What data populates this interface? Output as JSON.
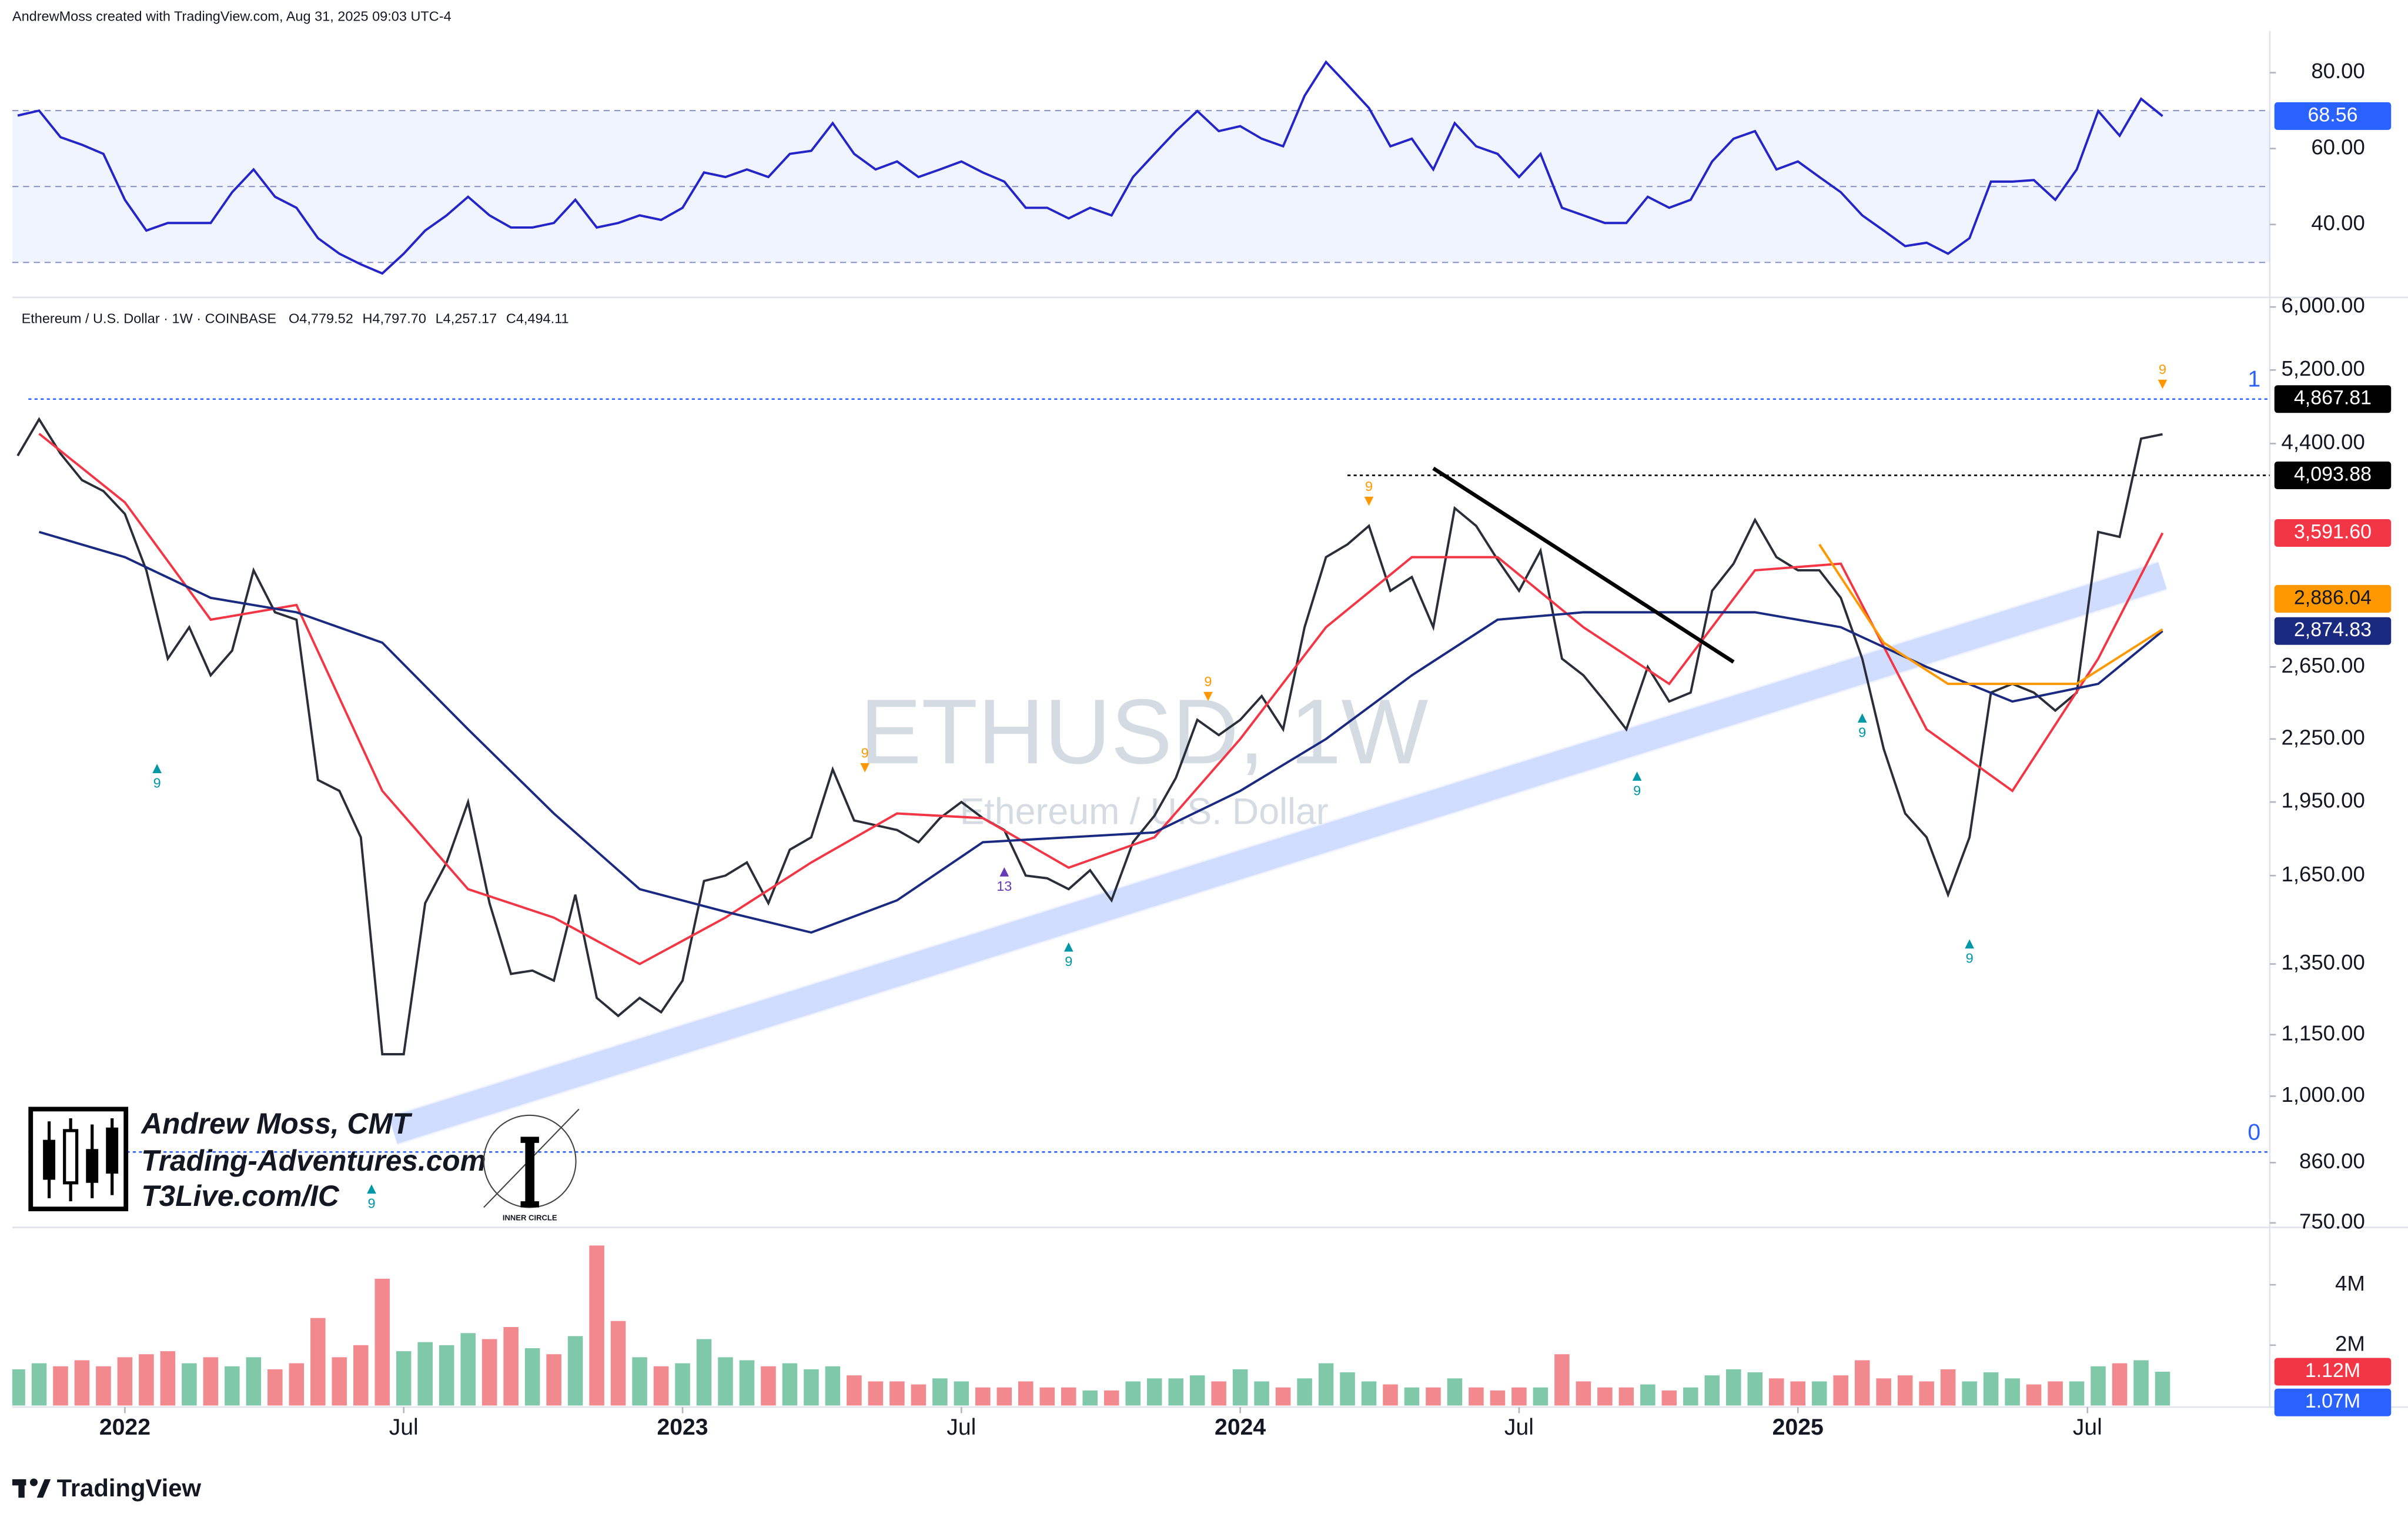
{
  "header": "AndrewMoss created with TradingView.com, Aug 31, 2025 09:03 UTC-4",
  "footer": "TradingView",
  "watermark": {
    "symbol": "ETHUSD, 1W",
    "name": "Ethereum / U.S. Dollar"
  },
  "branding": {
    "author": "Andrew Moss, CMT",
    "site": "Trading-Adventures.com",
    "link": "T3Live.com/IC",
    "badge": "INNER CIRCLE"
  },
  "legend": {
    "symbol": "Ethereum / U.S. Dollar · 1W · COINBASE",
    "ohlc": [
      {
        "key": "O",
        "value": 4779.52,
        "label": "4,779.52"
      },
      {
        "key": "H",
        "value": 4797.7,
        "label": "4,797.70"
      },
      {
        "key": "L",
        "value": 4257.17,
        "label": "4,257.17"
      },
      {
        "key": "C",
        "value": 4494.11,
        "label": "4,494.11"
      }
    ]
  },
  "chart_data": {
    "type": "multi-pane",
    "xlim": [
      -10.5,
      200
    ],
    "xticks": [
      {
        "value": 0,
        "label": "2022"
      },
      {
        "value": 26,
        "label": "Jul"
      },
      {
        "value": 52,
        "label": "2023"
      },
      {
        "value": 78,
        "label": "Jul"
      },
      {
        "value": 104,
        "label": "2024"
      },
      {
        "value": 130,
        "label": "Jul"
      },
      {
        "value": 156,
        "label": "2025"
      },
      {
        "value": 183,
        "label": "Jul"
      }
    ],
    "x": [
      -10,
      -8,
      -6,
      -4,
      -2,
      0,
      2,
      4,
      6,
      8,
      10,
      12,
      14,
      16,
      18,
      20,
      22,
      24,
      26,
      28,
      30,
      32,
      34,
      36,
      38,
      40,
      42,
      44,
      46,
      48,
      50,
      52,
      54,
      56,
      58,
      60,
      62,
      64,
      66,
      68,
      70,
      72,
      74,
      76,
      78,
      80,
      82,
      84,
      86,
      88,
      90,
      92,
      94,
      96,
      98,
      100,
      102,
      104,
      106,
      108,
      110,
      112,
      114,
      116,
      118,
      120,
      122,
      124,
      126,
      128,
      130,
      132,
      134,
      136,
      138,
      140,
      142,
      144,
      146,
      148,
      150,
      152,
      154,
      156,
      158,
      160,
      162,
      164,
      166,
      168,
      170,
      172,
      174,
      176,
      178,
      180,
      182,
      184,
      186,
      188,
      190
    ],
    "rsi": {
      "type": "line",
      "color": "#2424c8",
      "ylim": [
        21.4,
        91
      ],
      "yticks": [
        {
          "value": 80,
          "label": "80.00"
        },
        {
          "value": 60,
          "label": "60.00"
        },
        {
          "value": 40,
          "label": "40.00"
        }
      ],
      "levels": [
        30,
        50,
        70
      ],
      "last_label": {
        "value": 68.56,
        "label": "68.56",
        "color": "#2962ff"
      },
      "values": [
        68.7,
        70,
        63,
        61,
        58.6,
        46.5,
        38.4,
        40.4,
        40.4,
        40.4,
        48.5,
        54.5,
        47.3,
        44.4,
        36.4,
        32.3,
        29.5,
        27.1,
        32.3,
        38.4,
        42.4,
        47.3,
        42.4,
        39.2,
        39.2,
        40.4,
        46.5,
        39.2,
        40.4,
        42.4,
        41.2,
        44.4,
        53.7,
        52.5,
        54.5,
        52.5,
        58.6,
        59.4,
        66.7,
        58.6,
        54.5,
        56.6,
        52.5,
        54.5,
        56.6,
        53.7,
        51.3,
        44.4,
        44.4,
        41.6,
        44.4,
        42.4,
        52.5,
        58.6,
        64.6,
        69.9,
        64.6,
        65.9,
        62.6,
        60.6,
        73.9,
        82.8,
        76.8,
        70.7,
        60.6,
        62.6,
        54.5,
        66.7,
        60.6,
        58.6,
        52.5,
        58.6,
        44.4,
        42.4,
        40.4,
        40.4,
        47.3,
        44.4,
        46.5,
        56.6,
        62.6,
        64.6,
        54.5,
        56.6,
        52.5,
        48.5,
        42.4,
        38.4,
        34.3,
        35.2,
        32.3,
        36.4,
        51.3,
        51.3,
        51.7,
        46.5,
        54.5,
        69.9,
        63.4,
        73.1,
        68.56
      ]
    },
    "price": {
      "type": "line",
      "color": "#2a2e39",
      "log": true,
      "ylim": [
        745,
        6100
      ],
      "yticks": [
        {
          "value": 6000,
          "label": "6,000.00"
        },
        {
          "value": 5200,
          "label": "5,200.00"
        },
        {
          "value": 4400,
          "label": "4,400.00"
        },
        {
          "value": 2650,
          "label": "2,650.00"
        },
        {
          "value": 2250,
          "label": "2,250.00"
        },
        {
          "value": 1950,
          "label": "1,950.00"
        },
        {
          "value": 1650,
          "label": "1,650.00"
        },
        {
          "value": 1350,
          "label": "1,350.00"
        },
        {
          "value": 1150,
          "label": "1,150.00"
        },
        {
          "value": 1000,
          "label": "1,000.00"
        },
        {
          "value": 860,
          "label": "860.00"
        },
        {
          "value": 750,
          "label": "750.00"
        }
      ],
      "values": [
        4280,
        4650,
        4300,
        4050,
        3950,
        3750,
        3300,
        2700,
        2900,
        2600,
        2750,
        3300,
        3000,
        2950,
        2050,
        2000,
        1800,
        1100,
        1100,
        1550,
        1700,
        1950,
        1550,
        1320,
        1330,
        1300,
        1580,
        1250,
        1200,
        1250,
        1210,
        1300,
        1630,
        1650,
        1700,
        1550,
        1750,
        1800,
        2100,
        1870,
        1850,
        1830,
        1780,
        1880,
        1950,
        1880,
        1830,
        1650,
        1640,
        1600,
        1670,
        1560,
        1780,
        1890,
        2060,
        2350,
        2270,
        2350,
        2480,
        2300,
        2900,
        3400,
        3500,
        3650,
        3150,
        3250,
        2900,
        3800,
        3650,
        3380,
        3150,
        3450,
        2700,
        2600,
        2450,
        2300,
        2650,
        2450,
        2500,
        3150,
        3350,
        3700,
        3400,
        3300,
        3300,
        3100,
        2700,
        2200,
        1900,
        1800,
        1580,
        1800,
        2500,
        2550,
        2500,
        2400,
        2500,
        3600,
        3560,
        4450,
        4494.11
      ],
      "overlays": [
        {
          "color": "#f23645",
          "x": [
            -8,
            0,
            8,
            16,
            24,
            32,
            40,
            48,
            56,
            64,
            72,
            80,
            88,
            96,
            104,
            112,
            120,
            128,
            136,
            144,
            152,
            160,
            168,
            176,
            184,
            190
          ],
          "values": [
            4500,
            3850,
            2950,
            3050,
            2000,
            1600,
            1500,
            1350,
            1500,
            1700,
            1900,
            1880,
            1680,
            1800,
            2250,
            2900,
            3400,
            3400,
            2900,
            2550,
            3300,
            3350,
            2300,
            2000,
            2700,
            3591.6
          ]
        },
        {
          "color": "#1a2a80",
          "x": [
            -8,
            0,
            8,
            16,
            24,
            32,
            40,
            48,
            56,
            64,
            72,
            80,
            88,
            96,
            104,
            112,
            120,
            128,
            136,
            144,
            152,
            160,
            168,
            176,
            184,
            190
          ],
          "values": [
            3600,
            3400,
            3100,
            3000,
            2800,
            2300,
            1900,
            1600,
            1520,
            1450,
            1560,
            1780,
            1800,
            1820,
            2000,
            2250,
            2600,
            2950,
            3000,
            3000,
            3000,
            2900,
            2650,
            2450,
            2550,
            2874.83
          ]
        },
        {
          "color": "#ff9800",
          "x": [
            158,
            164,
            170,
            176,
            182,
            190
          ],
          "values": [
            3500,
            2800,
            2550,
            2550,
            2550,
            2886.04
          ]
        }
      ],
      "channel": {
        "x": [
          25,
          190
        ],
        "values": [
          925,
          3260
        ],
        "color": "#2962ff"
      },
      "trendline": {
        "x": [
          122,
          150
        ],
        "values": [
          4160,
          2680
        ],
        "color": "#000000"
      },
      "fib": [
        {
          "level": 1,
          "price": 4867.81,
          "from": -9
        },
        {
          "level": 0,
          "price": 881,
          "from": -9
        }
      ],
      "fib_color": "#2962ff",
      "markers": [
        {
          "x": 3,
          "price": 2104,
          "label": 9,
          "color": "#0097a7",
          "direction": "up"
        },
        {
          "x": 23,
          "price": 810,
          "label": 9,
          "color": "#0097a7",
          "direction": "up"
        },
        {
          "x": 69,
          "price": 2175,
          "label": 9,
          "color": "#ff9800",
          "direction": "down"
        },
        {
          "x": 82,
          "price": 1664,
          "label": 13,
          "color": "#673ab7",
          "direction": "up"
        },
        {
          "x": 88,
          "price": 1403,
          "label": 9,
          "color": "#0097a7",
          "direction": "up"
        },
        {
          "x": 101,
          "price": 2557,
          "label": 9,
          "color": "#ff9800",
          "direction": "down"
        },
        {
          "x": 116,
          "price": 3983,
          "label": 9,
          "color": "#ff9800",
          "direction": "down"
        },
        {
          "x": 141,
          "price": 2068,
          "label": 9,
          "color": "#0097a7",
          "direction": "up"
        },
        {
          "x": 162,
          "price": 2360,
          "label": 9,
          "color": "#0097a7",
          "direction": "up"
        },
        {
          "x": 172,
          "price": 1413,
          "label": 9,
          "color": "#0097a7",
          "direction": "up"
        },
        {
          "x": 190,
          "price": 5195,
          "label": 9,
          "color": "#ff9800",
          "direction": "down"
        }
      ],
      "price_labels": [
        {
          "value": 4867.81,
          "label": "4,867.81",
          "color": "#000000"
        },
        {
          "value": 4093.88,
          "label": "4,093.88",
          "color": "#000000",
          "line_from": 114
        },
        {
          "value": 3591.6,
          "label": "3,591.60",
          "color": "#f23645"
        },
        {
          "value": 2886.04,
          "label": "2,886.04",
          "color": "#ff9800"
        },
        {
          "value": 2874.83,
          "label": "2,874.83",
          "color": "#1a2a80"
        }
      ]
    },
    "volume": {
      "type": "bar",
      "up_color": "#7fc8a9",
      "down_color": "#f2898f",
      "ylim": [
        0,
        5.85
      ],
      "yticks": [
        {
          "value": 4,
          "label": "4M"
        },
        {
          "value": 2,
          "label": "2M"
        }
      ],
      "values": [
        1.2,
        1.4,
        1.3,
        1.5,
        1.3,
        1.6,
        1.7,
        1.8,
        1.4,
        1.6,
        1.3,
        1.6,
        1.2,
        1.4,
        2.9,
        1.6,
        2.0,
        4.2,
        1.8,
        2.1,
        2.0,
        2.4,
        2.2,
        2.6,
        1.9,
        1.7,
        2.3,
        5.3,
        2.8,
        1.6,
        1.3,
        1.4,
        2.2,
        1.6,
        1.5,
        1.3,
        1.4,
        1.2,
        1.3,
        1.0,
        0.8,
        0.8,
        0.7,
        0.9,
        0.8,
        0.6,
        0.6,
        0.8,
        0.6,
        0.6,
        0.5,
        0.5,
        0.8,
        0.9,
        0.9,
        1.0,
        0.8,
        1.2,
        0.8,
        0.6,
        0.9,
        1.4,
        1.1,
        0.8,
        0.7,
        0.6,
        0.6,
        0.9,
        0.6,
        0.5,
        0.6,
        0.6,
        1.7,
        0.8,
        0.6,
        0.6,
        0.7,
        0.5,
        0.6,
        1.0,
        1.2,
        1.1,
        0.9,
        0.8,
        0.8,
        1.0,
        1.5,
        0.9,
        1.0,
        0.8,
        1.2,
        0.8,
        1.1,
        0.9,
        0.7,
        0.8,
        0.8,
        1.3,
        1.4,
        1.5,
        1.12
      ],
      "last_labels": [
        {
          "value": 1.12,
          "label": "1.12M",
          "color": "#f23645"
        },
        {
          "value": 1.07,
          "label": "1.07M",
          "color": "#2962ff"
        }
      ]
    }
  }
}
